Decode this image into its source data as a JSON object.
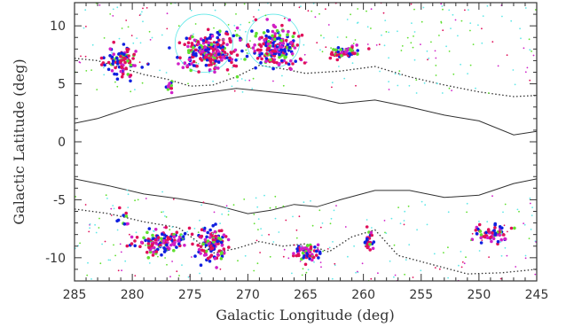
{
  "chart_data": {
    "type": "scatter",
    "title": "",
    "xlabel": "Galactic Longitude (deg)",
    "ylabel": "Galactic Latitude (deg)",
    "xlim": [
      285,
      245
    ],
    "ylim": [
      -12,
      12
    ],
    "x_reversed": true,
    "x_ticks": [
      285,
      280,
      275,
      270,
      265,
      260,
      255,
      250,
      245
    ],
    "y_ticks": [
      -10,
      -5,
      0,
      5,
      10
    ],
    "grid": false,
    "legend": "none",
    "colors": {
      "red": "#e0105a",
      "magenta": "#d020c8",
      "blue": "#1020e0",
      "green": "#60e030",
      "cyan": "#60e8e8",
      "contour": "#303030"
    },
    "clusters": [
      {
        "l": 281,
        "b": 7.0,
        "sl": 1.0,
        "sb": 0.9,
        "n": 95
      },
      {
        "l": 273.3,
        "b": 7.8,
        "sl": 1.8,
        "sb": 1.1,
        "n": 260
      },
      {
        "l": 267.5,
        "b": 8.2,
        "sl": 1.4,
        "sb": 1.3,
        "n": 190
      },
      {
        "l": 261.5,
        "b": 7.7,
        "sl": 0.9,
        "sb": 0.4,
        "n": 60
      },
      {
        "l": 276.7,
        "b": 4.8,
        "sl": 0.4,
        "sb": 0.3,
        "n": 14
      },
      {
        "l": 277.5,
        "b": -8.7,
        "sl": 1.6,
        "sb": 0.8,
        "n": 120
      },
      {
        "l": 273.0,
        "b": -8.8,
        "sl": 0.9,
        "sb": 1.1,
        "n": 120
      },
      {
        "l": 265.0,
        "b": -9.6,
        "sl": 0.8,
        "sb": 0.5,
        "n": 60
      },
      {
        "l": 259.5,
        "b": -8.6,
        "sl": 0.3,
        "sb": 0.8,
        "n": 24
      },
      {
        "l": 249.0,
        "b": -7.9,
        "sl": 1.2,
        "sb": 0.5,
        "n": 60
      },
      {
        "l": 280.6,
        "b": -6.6,
        "sl": 0.4,
        "sb": 0.6,
        "n": 10
      }
    ],
    "large_circles": [
      {
        "l": 273.8,
        "b": 8.5,
        "r": 2.5
      },
      {
        "l": 267.8,
        "b": 8.7,
        "r": 2.3
      }
    ],
    "contours": [
      [
        [
          285,
          1.6
        ],
        [
          283,
          2.0
        ],
        [
          280,
          3.0
        ],
        [
          277,
          3.7
        ],
        [
          274,
          4.2
        ],
        [
          271,
          4.6
        ],
        [
          268,
          4.3
        ],
        [
          265,
          4.0
        ],
        [
          262,
          3.3
        ],
        [
          259,
          3.6
        ],
        [
          256,
          3.0
        ],
        [
          253,
          2.3
        ],
        [
          250,
          1.8
        ],
        [
          247,
          0.6
        ],
        [
          245,
          0.9
        ]
      ],
      [
        [
          285,
          -3.2
        ],
        [
          282,
          -3.8
        ],
        [
          279,
          -4.5
        ],
        [
          276,
          -4.9
        ],
        [
          273,
          -5.4
        ],
        [
          270,
          -6.2
        ],
        [
          268,
          -5.9
        ],
        [
          266,
          -5.4
        ],
        [
          264,
          -5.6
        ],
        [
          262,
          -5.0
        ],
        [
          259,
          -4.2
        ],
        [
          256,
          -4.2
        ],
        [
          253,
          -4.8
        ],
        [
          250,
          -4.6
        ],
        [
          247,
          -3.6
        ],
        [
          245,
          -3.2
        ]
      ]
    ],
    "dotted_contours": [
      [
        [
          285,
          7.2
        ],
        [
          283,
          7.0
        ],
        [
          281,
          6.4
        ],
        [
          279,
          5.8
        ],
        [
          277,
          5.4
        ],
        [
          275,
          4.8
        ],
        [
          273,
          4.9
        ],
        [
          271,
          5.6
        ],
        [
          269,
          6.6
        ],
        [
          267,
          6.3
        ],
        [
          265,
          5.9
        ],
        [
          262,
          6.1
        ],
        [
          259,
          6.5
        ],
        [
          256,
          5.6
        ],
        [
          253,
          4.9
        ],
        [
          250,
          4.3
        ],
        [
          247,
          3.9
        ],
        [
          245,
          4.0
        ]
      ],
      [
        [
          285,
          -5.8
        ],
        [
          282,
          -6.2
        ],
        [
          279,
          -6.9
        ],
        [
          276,
          -7.4
        ],
        [
          273,
          -9.6
        ],
        [
          271,
          -9.2
        ],
        [
          269,
          -8.6
        ],
        [
          267,
          -9.0
        ],
        [
          265,
          -8.8
        ],
        [
          263,
          -9.5
        ],
        [
          261,
          -8.2
        ],
        [
          259,
          -7.6
        ],
        [
          257,
          -9.8
        ],
        [
          254,
          -10.6
        ],
        [
          251,
          -11.4
        ],
        [
          248,
          -11.3
        ],
        [
          245,
          -11.0
        ]
      ]
    ]
  }
}
